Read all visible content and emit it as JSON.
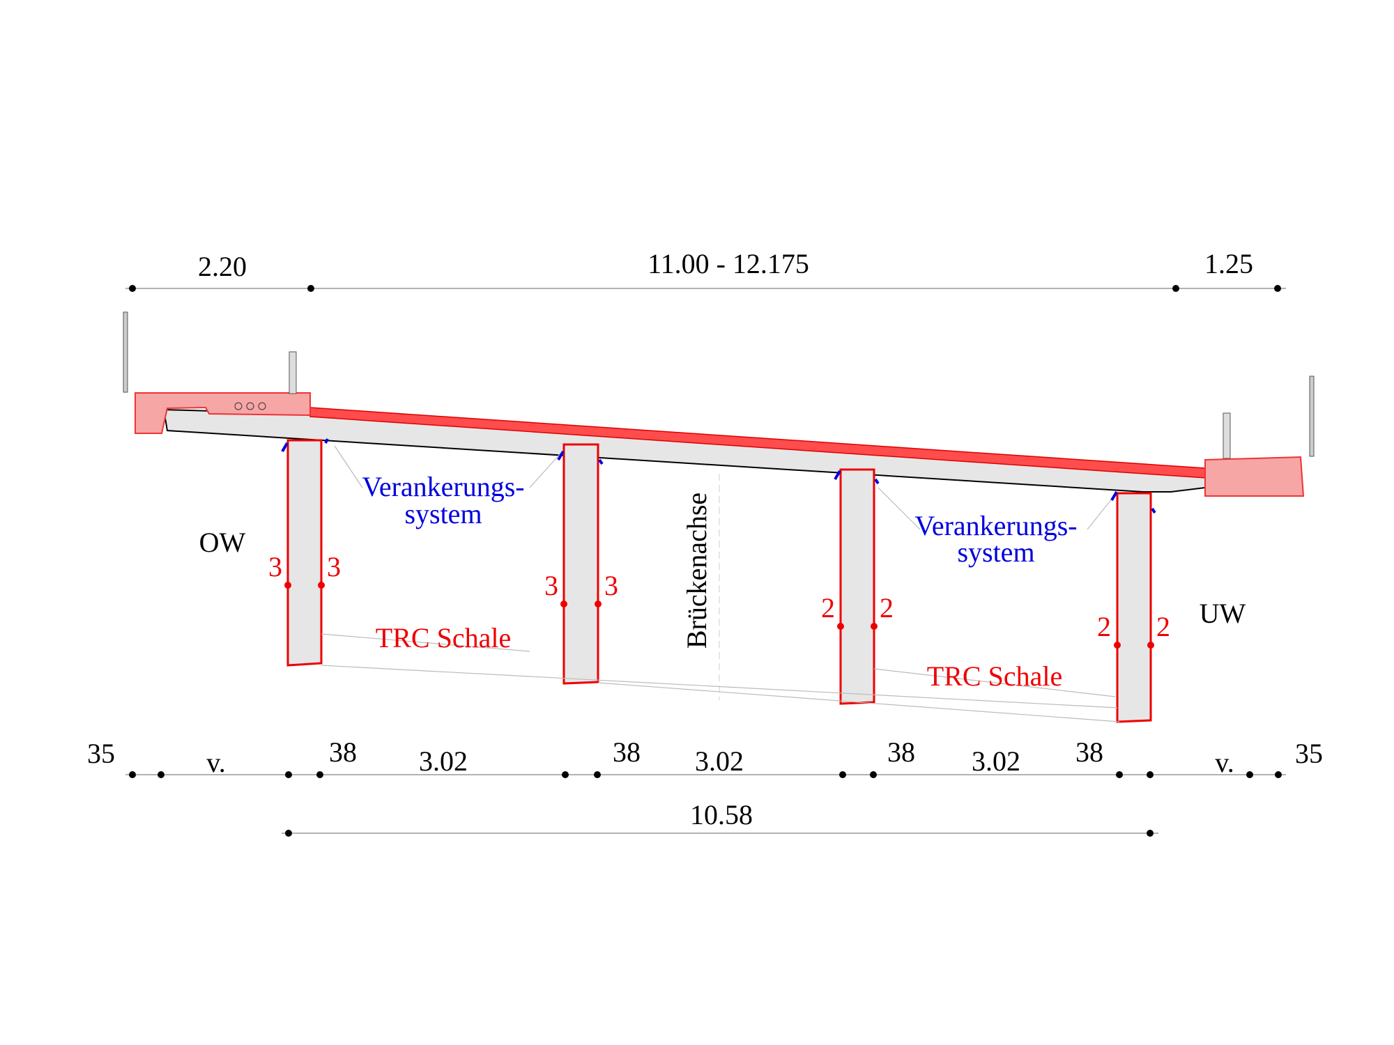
{
  "dimensions_top": [
    "2.20",
    "11.00 - 12.175",
    "1.25"
  ],
  "dimensions_bottom": [
    "35",
    "v.",
    "38",
    "3.02",
    "38",
    "3.02",
    "38",
    "3.02",
    "38",
    "v.",
    "35"
  ],
  "dimension_total": "10.58",
  "labels": {
    "left_side": "OW",
    "right_side": "UW",
    "axis": "Brückenachse"
  },
  "anchoring": [
    {
      "line1": "Verankerungs-",
      "line2": "system"
    },
    {
      "line1": "Verankerungs-",
      "line2": "system"
    }
  ],
  "shell": [
    "TRC Schale",
    "TRC Schale"
  ],
  "web_marks": [
    "3",
    "3",
    "3",
    "3",
    "2",
    "2",
    "2",
    "2"
  ]
}
